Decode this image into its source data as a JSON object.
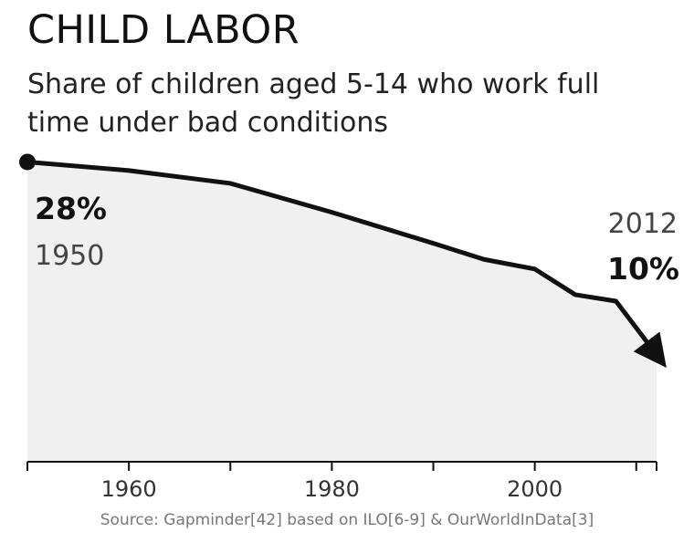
{
  "title": "CHILD LABOR",
  "subtitle": "Share of children aged 5-14 who work full time under bad conditions",
  "source": "Source: Gapminder[42] based on ILO[6-9] & OurWorldInData[3]",
  "chart_data": {
    "type": "area",
    "title": "CHILD LABOR",
    "subtitle": "Share of children aged 5-14 who work full time under bad conditions",
    "xlabel": "",
    "ylabel": "",
    "x": [
      1950,
      1960,
      1970,
      1980,
      1990,
      1995,
      2000,
      2004,
      2008,
      2012
    ],
    "y": [
      28,
      27.2,
      26,
      23.3,
      20.4,
      18.9,
      18,
      15.6,
      15,
      10
    ],
    "xlim": [
      1950,
      2012
    ],
    "ylim": [
      0,
      30
    ],
    "x_ticks": [
      1960,
      1980,
      2000
    ],
    "grid": false,
    "annotations": {
      "start_value": "28%",
      "start_year": "1950",
      "end_year": "2012",
      "end_value": "10%"
    },
    "colors": {
      "line": "#111111",
      "area_fill": "#f0f0f0"
    }
  }
}
